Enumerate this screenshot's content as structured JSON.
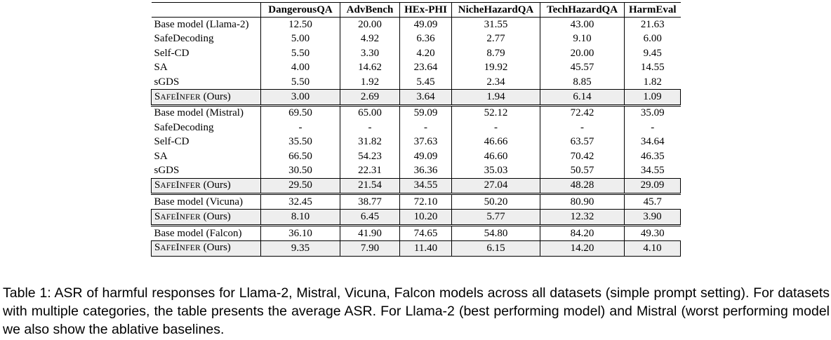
{
  "table": {
    "columns": [
      "",
      "DangerousQA",
      "AdvBench",
      "HEx-PHI",
      "NicheHazardQA",
      "TechHazardQA",
      "HarmEval"
    ],
    "groups": [
      {
        "rows": [
          {
            "label": "Base model (Llama-2)",
            "values": [
              "12.50",
              "20.00",
              "49.09",
              "31.55",
              "43.00",
              "21.63"
            ]
          },
          {
            "label": "SafeDecoding",
            "values": [
              "5.00",
              "4.92",
              "6.36",
              "2.77",
              "9.10",
              "6.00"
            ]
          },
          {
            "label": "Self-CD",
            "values": [
              "5.50",
              "3.30",
              "4.20",
              "8.79",
              "20.00",
              "9.45"
            ]
          },
          {
            "label": "SA",
            "values": [
              "4.00",
              "14.62",
              "23.64",
              "19.92",
              "45.57",
              "14.55"
            ]
          },
          {
            "label": "sGDS",
            "values": [
              "5.50",
              "1.92",
              "5.45",
              "2.34",
              "8.85",
              "1.82"
            ]
          }
        ],
        "ours": {
          "label": "SafeInfer (Ours)",
          "values": [
            "3.00",
            "2.69",
            "3.64",
            "1.94",
            "6.14",
            "1.09"
          ]
        }
      },
      {
        "rows": [
          {
            "label": "Base model (Mistral)",
            "values": [
              "69.50",
              "65.00",
              "59.09",
              "52.12",
              "72.42",
              "35.09"
            ]
          },
          {
            "label": "SafeDecoding",
            "values": [
              "-",
              "-",
              "-",
              "-",
              "-",
              "-"
            ]
          },
          {
            "label": "Self-CD",
            "values": [
              "35.50",
              "31.82",
              "37.63",
              "46.66",
              "63.57",
              "34.64"
            ]
          },
          {
            "label": "SA",
            "values": [
              "66.50",
              "54.23",
              "49.09",
              "46.60",
              "70.42",
              "46.35"
            ]
          },
          {
            "label": "sGDS",
            "values": [
              "30.50",
              "22.31",
              "36.36",
              "35.03",
              "50.57",
              "34.55"
            ]
          }
        ],
        "ours": {
          "label": "SafeInfer (Ours)",
          "values": [
            "29.50",
            "21.54",
            "34.55",
            "27.04",
            "48.28",
            "29.09"
          ]
        }
      },
      {
        "rows": [
          {
            "label": "Base model (Vicuna)",
            "values": [
              "32.45",
              "38.77",
              "72.10",
              "50.20",
              "80.90",
              "45.7"
            ]
          }
        ],
        "ours": {
          "label": "SafeInfer (Ours)",
          "values": [
            "8.10",
            "6.45",
            "10.20",
            "5.77",
            "12.32",
            "3.90"
          ]
        }
      },
      {
        "rows": [
          {
            "label": "Base model (Falcon)",
            "values": [
              "36.10",
              "41.90",
              "74.65",
              "54.80",
              "84.20",
              "49.30"
            ]
          }
        ],
        "ours": {
          "label": "SafeInfer (Ours)",
          "values": [
            "9.35",
            "7.90",
            "11.40",
            "6.15",
            "14.20",
            "4.10"
          ]
        }
      }
    ]
  },
  "caption": "Table 1: ASR of harmful responses for Llama-2, Mistral, Vicuna, Falcon models across all datasets (simple prompt setting). For datasets with multiple categories, the table presents the average ASR. For Llama-2 (best performing model) and Mistral (worst performing model we also show the ablative baselines."
}
